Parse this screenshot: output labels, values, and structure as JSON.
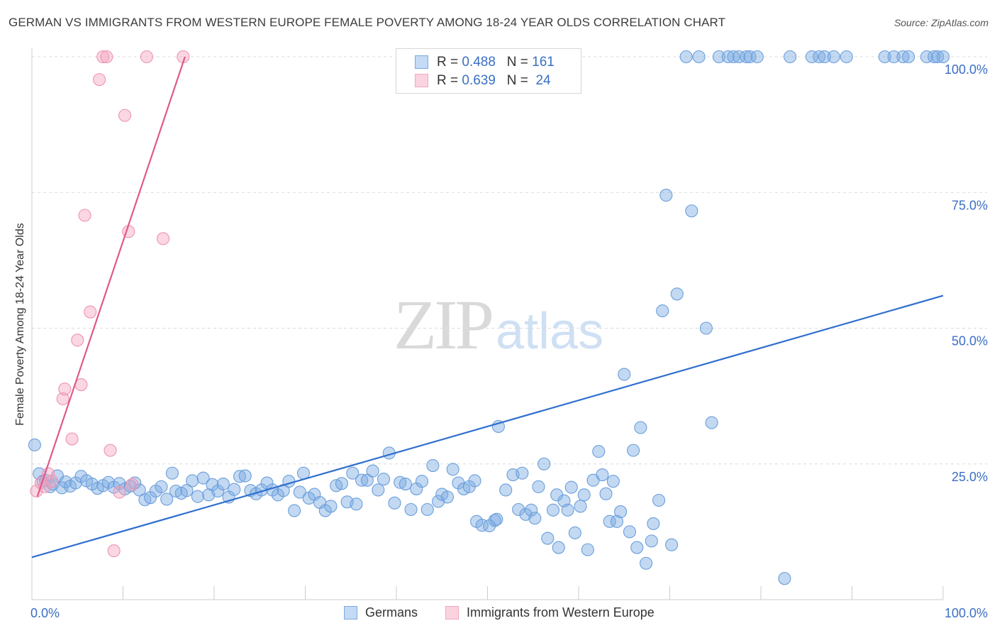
{
  "chart_data": {
    "type": "scatter",
    "title": "GERMAN VS IMMIGRANTS FROM WESTERN EUROPE FEMALE POVERTY AMONG 18-24 YEAR OLDS CORRELATION CHART",
    "source": "Source: ZipAtlas.com",
    "ylabel": "Female Poverty Among 18-24 Year Olds",
    "xlabel": "",
    "x_tick_labels": [
      "0.0%",
      "100.0%"
    ],
    "y_tick_labels": [
      "100.0%",
      "75.0%",
      "50.0%",
      "25.0%"
    ],
    "xlim": [
      0,
      100
    ],
    "ylim": [
      0,
      100
    ],
    "grid": "horizontal dashed",
    "watermark": {
      "zip": "ZIP",
      "atlas": "atlas"
    },
    "legend_stats": [
      {
        "r_label": "R =",
        "r_value": "0.488",
        "n_label": "N =",
        "n_value": "161"
      },
      {
        "r_label": "R =",
        "r_value": "0.639",
        "n_label": "N =",
        "n_value": "24"
      }
    ],
    "series": [
      {
        "name": "Germans",
        "color": "#7aaae3",
        "trend_color": "#2f6fcf",
        "trendline": {
          "x": [
            0,
            100
          ],
          "y": [
            7.8,
            56.0
          ]
        },
        "points": [
          [
            0.3,
            28.5
          ],
          [
            0.8,
            23.2
          ],
          [
            1.2,
            21.8
          ],
          [
            1.5,
            22.0
          ],
          [
            2.0,
            20.8
          ],
          [
            2.3,
            21.3
          ],
          [
            2.8,
            22.8
          ],
          [
            3.3,
            20.6
          ],
          [
            3.7,
            21.7
          ],
          [
            4.2,
            20.9
          ],
          [
            4.8,
            21.5
          ],
          [
            5.4,
            22.7
          ],
          [
            6.0,
            21.9
          ],
          [
            6.6,
            21.3
          ],
          [
            7.2,
            20.5
          ],
          [
            7.8,
            21.0
          ],
          [
            8.4,
            21.6
          ],
          [
            9.0,
            20.7
          ],
          [
            9.6,
            21.4
          ],
          [
            10.2,
            20.4
          ],
          [
            10.8,
            20.9
          ],
          [
            11.3,
            21.5
          ],
          [
            11.8,
            20.2
          ],
          [
            12.4,
            18.4
          ],
          [
            13.0,
            18.8
          ],
          [
            13.6,
            20.0
          ],
          [
            14.2,
            20.8
          ],
          [
            14.8,
            18.5
          ],
          [
            15.4,
            23.3
          ],
          [
            15.8,
            20.0
          ],
          [
            16.4,
            19.6
          ],
          [
            17.0,
            20.1
          ],
          [
            17.6,
            21.9
          ],
          [
            18.2,
            19.0
          ],
          [
            18.8,
            22.4
          ],
          [
            19.4,
            19.3
          ],
          [
            19.8,
            21.2
          ],
          [
            20.4,
            20.0
          ],
          [
            21.0,
            21.3
          ],
          [
            21.6,
            18.9
          ],
          [
            22.2,
            20.3
          ],
          [
            22.8,
            22.7
          ],
          [
            23.4,
            22.8
          ],
          [
            24.0,
            20.1
          ],
          [
            24.6,
            19.5
          ],
          [
            25.2,
            20.2
          ],
          [
            25.8,
            21.5
          ],
          [
            26.4,
            20.2
          ],
          [
            27.0,
            19.3
          ],
          [
            27.6,
            20.1
          ],
          [
            28.2,
            21.8
          ],
          [
            28.8,
            16.4
          ],
          [
            29.4,
            19.8
          ],
          [
            29.8,
            23.3
          ],
          [
            30.4,
            18.7
          ],
          [
            31.0,
            19.4
          ],
          [
            31.6,
            17.9
          ],
          [
            32.2,
            16.4
          ],
          [
            32.8,
            17.2
          ],
          [
            33.4,
            21.0
          ],
          [
            34.0,
            21.4
          ],
          [
            34.6,
            18.0
          ],
          [
            35.2,
            23.3
          ],
          [
            35.6,
            17.6
          ],
          [
            36.2,
            22.0
          ],
          [
            36.8,
            22.0
          ],
          [
            37.4,
            23.7
          ],
          [
            38.0,
            20.2
          ],
          [
            38.6,
            22.2
          ],
          [
            39.2,
            27.0
          ],
          [
            39.8,
            17.8
          ],
          [
            40.4,
            21.6
          ],
          [
            41.0,
            21.3
          ],
          [
            41.6,
            16.6
          ],
          [
            42.2,
            20.4
          ],
          [
            42.8,
            21.8
          ],
          [
            43.4,
            16.6
          ],
          [
            44.0,
            24.7
          ],
          [
            44.6,
            18.1
          ],
          [
            45.0,
            19.4
          ],
          [
            45.6,
            18.9
          ],
          [
            46.2,
            24.0
          ],
          [
            46.8,
            21.5
          ],
          [
            47.4,
            20.4
          ],
          [
            48.0,
            20.8
          ],
          [
            48.6,
            21.9
          ],
          [
            48.8,
            14.4
          ],
          [
            49.4,
            13.7
          ],
          [
            50.2,
            13.6
          ],
          [
            50.8,
            14.6
          ],
          [
            51.0,
            14.8
          ],
          [
            51.2,
            31.9
          ],
          [
            52.0,
            20.2
          ],
          [
            52.8,
            23.0
          ],
          [
            53.4,
            16.6
          ],
          [
            53.8,
            23.3
          ],
          [
            54.2,
            15.7
          ],
          [
            54.8,
            16.5
          ],
          [
            55.2,
            15.0
          ],
          [
            55.6,
            20.8
          ],
          [
            56.2,
            25.0
          ],
          [
            56.6,
            11.3
          ],
          [
            57.2,
            16.5
          ],
          [
            57.6,
            19.3
          ],
          [
            57.8,
            9.6
          ],
          [
            58.4,
            18.2
          ],
          [
            58.8,
            16.5
          ],
          [
            59.2,
            20.7
          ],
          [
            59.6,
            12.3
          ],
          [
            60.2,
            17.2
          ],
          [
            60.6,
            19.3
          ],
          [
            61.0,
            9.2
          ],
          [
            61.6,
            22.0
          ],
          [
            62.2,
            27.3
          ],
          [
            62.6,
            23.0
          ],
          [
            63.0,
            19.5
          ],
          [
            63.4,
            14.4
          ],
          [
            63.8,
            21.8
          ],
          [
            64.2,
            14.4
          ],
          [
            64.6,
            16.2
          ],
          [
            65.0,
            41.5
          ],
          [
            65.6,
            12.5
          ],
          [
            66.0,
            27.5
          ],
          [
            66.4,
            9.6
          ],
          [
            66.8,
            31.7
          ],
          [
            67.4,
            6.7
          ],
          [
            68.0,
            10.8
          ],
          [
            68.2,
            14.0
          ],
          [
            68.8,
            18.3
          ],
          [
            69.2,
            53.2
          ],
          [
            69.6,
            74.5
          ],
          [
            70.2,
            10.1
          ],
          [
            70.8,
            56.3
          ],
          [
            71.8,
            100
          ],
          [
            72.4,
            71.6
          ],
          [
            73.2,
            100
          ],
          [
            74.0,
            50.0
          ],
          [
            74.6,
            32.6
          ],
          [
            75.4,
            100
          ],
          [
            76.4,
            100
          ],
          [
            77.0,
            100
          ],
          [
            77.6,
            100
          ],
          [
            78.4,
            100
          ],
          [
            78.8,
            100
          ],
          [
            79.6,
            100
          ],
          [
            82.6,
            3.9
          ],
          [
            83.2,
            100
          ],
          [
            85.6,
            100
          ],
          [
            86.4,
            100
          ],
          [
            87.0,
            100
          ],
          [
            88.0,
            100
          ],
          [
            89.4,
            100
          ],
          [
            93.6,
            100
          ],
          [
            94.6,
            100
          ],
          [
            95.6,
            100
          ],
          [
            96.2,
            100
          ],
          [
            98.2,
            100
          ],
          [
            99.0,
            100
          ],
          [
            99.4,
            100
          ],
          [
            100.0,
            100
          ]
        ]
      },
      {
        "name": "Immigrants from Western Europe",
        "color": "#f4a6bf",
        "trend_color": "#e0588c",
        "trendline": {
          "x": [
            0.6,
            16.8
          ],
          "y": [
            19.0,
            100.0
          ]
        },
        "points": [
          [
            0.5,
            20.0
          ],
          [
            1.0,
            21.5
          ],
          [
            1.4,
            20.8
          ],
          [
            1.8,
            23.2
          ],
          [
            2.2,
            21.8
          ],
          [
            3.4,
            37.0
          ],
          [
            3.6,
            38.8
          ],
          [
            4.4,
            29.6
          ],
          [
            5.0,
            47.8
          ],
          [
            5.4,
            39.6
          ],
          [
            5.8,
            70.8
          ],
          [
            6.4,
            53.0
          ],
          [
            7.4,
            95.8
          ],
          [
            7.8,
            100
          ],
          [
            8.2,
            100
          ],
          [
            8.6,
            27.5
          ],
          [
            9.0,
            9.0
          ],
          [
            9.6,
            19.8
          ],
          [
            10.2,
            89.2
          ],
          [
            10.6,
            67.8
          ],
          [
            11.0,
            21.2
          ],
          [
            12.6,
            100
          ],
          [
            14.4,
            66.5
          ],
          [
            16.6,
            100
          ]
        ]
      }
    ]
  },
  "legend": {
    "germans": "Germans",
    "immigrants": "Immigrants from Western Europe"
  }
}
